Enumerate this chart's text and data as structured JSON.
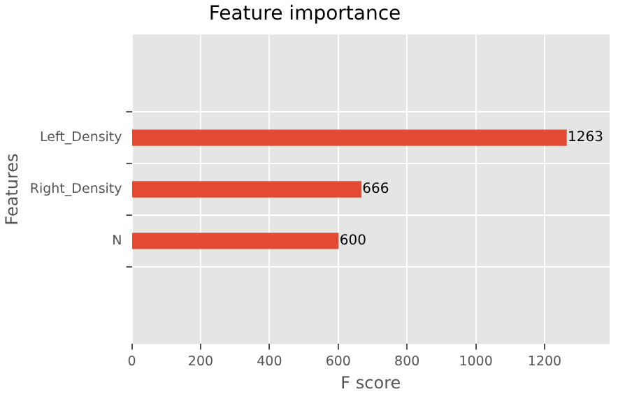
{
  "chart_data": {
    "type": "bar",
    "orientation": "horizontal",
    "title": "Feature importance",
    "xlabel": "F score",
    "ylabel": "Features",
    "categories": [
      "Left_Density",
      "Right_Density",
      "N"
    ],
    "values": [
      1263,
      666,
      600
    ],
    "color": "#e24a33",
    "xlim": [
      0,
      1389
    ],
    "xticks": [
      0,
      200,
      400,
      600,
      800,
      1000,
      1200
    ],
    "grid": true,
    "data_labels": true,
    "legend": false
  }
}
